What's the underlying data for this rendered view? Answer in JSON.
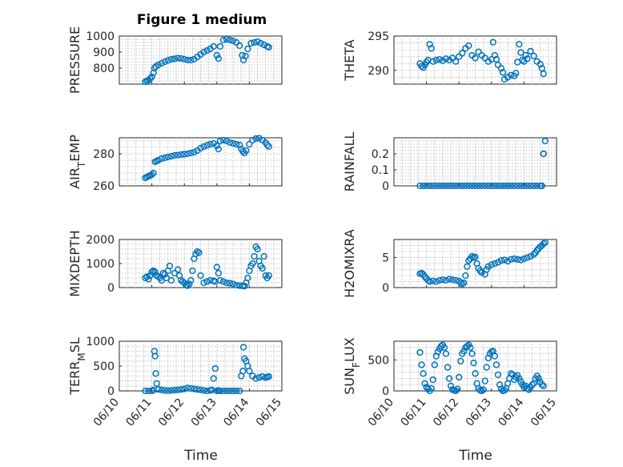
{
  "figure_title": "Figure 1 medium",
  "xlabel": "Time",
  "colors": {
    "marker": "#0072BD",
    "axis": "#262626",
    "grid": "#b0b0b0"
  },
  "x_ticks": [
    "06/10",
    "06/11",
    "06/12",
    "06/13",
    "06/14",
    "06/15"
  ],
  "chart_data": [
    {
      "type": "scatter",
      "title": "Figure 1 medium",
      "ylabel": "PRESSURE",
      "ylim": [
        700,
        1000
      ],
      "yticks": [
        800,
        900,
        1000
      ],
      "grid": true,
      "x": [
        10.8,
        10.85,
        10.9,
        10.95,
        11.0,
        11.05,
        11.08,
        11.12,
        11.2,
        11.3,
        11.4,
        11.5,
        11.6,
        11.7,
        11.8,
        11.9,
        12.0,
        12.1,
        12.2,
        12.3,
        12.4,
        12.5,
        12.6,
        12.7,
        12.8,
        12.9,
        13.0,
        13.05,
        13.1,
        13.2,
        13.3,
        13.4,
        13.5,
        13.6,
        13.7,
        13.78,
        13.82,
        13.88,
        13.95,
        14.05,
        14.15,
        14.25,
        14.35,
        14.45,
        14.55,
        14.6
      ],
      "values": [
        715,
        720,
        725,
        735,
        745,
        770,
        800,
        810,
        820,
        830,
        840,
        848,
        855,
        858,
        862,
        860,
        855,
        850,
        850,
        855,
        870,
        885,
        900,
        910,
        920,
        935,
        880,
        860,
        935,
        975,
        980,
        975,
        970,
        960,
        940,
        880,
        850,
        875,
        920,
        955,
        960,
        965,
        955,
        945,
        935,
        930
      ]
    },
    {
      "type": "scatter",
      "ylabel": "THETA",
      "ylim": [
        288,
        295
      ],
      "yticks": [
        290,
        295
      ],
      "grid": true,
      "x": [
        10.8,
        10.85,
        10.9,
        10.95,
        11.0,
        11.05,
        11.1,
        11.15,
        11.2,
        11.3,
        11.4,
        11.5,
        11.6,
        11.7,
        11.8,
        11.9,
        12.0,
        12.1,
        12.2,
        12.3,
        12.4,
        12.5,
        12.6,
        12.7,
        12.8,
        12.9,
        13.0,
        13.05,
        13.1,
        13.15,
        13.2,
        13.3,
        13.35,
        13.4,
        13.5,
        13.6,
        13.7,
        13.75,
        13.8,
        13.85,
        13.9,
        13.95,
        14.0,
        14.05,
        14.1,
        14.2,
        14.3,
        14.4,
        14.5,
        14.55,
        14.6
      ],
      "values": [
        291,
        290.6,
        290.4,
        290.8,
        291.2,
        291.5,
        293.8,
        293.2,
        291.3,
        291.5,
        291.6,
        291.4,
        291.7,
        291.5,
        291.8,
        291.3,
        292.0,
        292.5,
        293.2,
        293.6,
        292.2,
        291.8,
        292.7,
        292.2,
        291.8,
        291.3,
        291.6,
        294.1,
        292.2,
        291.6,
        290.8,
        290.3,
        289.7,
        288.7,
        289.0,
        289.3,
        289.2,
        289.6,
        291.2,
        293.8,
        292.6,
        291.5,
        291.3,
        292.2,
        291.7,
        292.8,
        292.1,
        291.3,
        290.9,
        290.3,
        289.5
      ]
    },
    {
      "type": "scatter",
      "ylabel": "AIR_TEMP",
      "ylim": [
        260,
        290
      ],
      "yticks": [
        260,
        280
      ],
      "grid": true,
      "x": [
        10.8,
        10.85,
        10.9,
        10.95,
        11.0,
        11.05,
        11.1,
        11.15,
        11.2,
        11.3,
        11.4,
        11.5,
        11.6,
        11.7,
        11.8,
        11.9,
        12.0,
        12.1,
        12.2,
        12.3,
        12.4,
        12.5,
        12.6,
        12.7,
        12.8,
        12.9,
        13.0,
        13.05,
        13.1,
        13.2,
        13.3,
        13.4,
        13.5,
        13.6,
        13.7,
        13.75,
        13.8,
        13.85,
        13.9,
        14.0,
        14.1,
        14.2,
        14.3,
        14.4,
        14.5,
        14.55,
        14.6
      ],
      "values": [
        265,
        265.5,
        266,
        266.5,
        267,
        268,
        275,
        275.5,
        276,
        277,
        277.5,
        278,
        278.5,
        279,
        279.2,
        279.5,
        279.8,
        280,
        280.5,
        281,
        282,
        283.5,
        284.5,
        285.3,
        286,
        286.5,
        285,
        283,
        288,
        288.5,
        288,
        287,
        286.5,
        286,
        285.5,
        283,
        281.5,
        280.5,
        282,
        286,
        288.5,
        289.5,
        289.7,
        288.5,
        287,
        285.5,
        284.5
      ]
    },
    {
      "type": "scatter",
      "ylabel": "RAINFALL",
      "ylim": [
        0,
        0.3
      ],
      "yticks": [
        0,
        0.1,
        0.2
      ],
      "grid": true,
      "x": [
        10.8,
        10.9,
        11.0,
        11.1,
        11.2,
        11.3,
        11.4,
        11.5,
        11.6,
        11.7,
        11.8,
        11.9,
        12.0,
        12.1,
        12.2,
        12.3,
        12.4,
        12.5,
        12.6,
        12.7,
        12.8,
        12.9,
        13.0,
        13.1,
        13.2,
        13.3,
        13.4,
        13.5,
        13.6,
        13.7,
        13.8,
        13.9,
        14.0,
        14.1,
        14.2,
        14.3,
        14.4,
        14.5,
        14.55,
        14.6,
        14.6,
        14.65
      ],
      "values": [
        0,
        0,
        0,
        0,
        0,
        0,
        0,
        0,
        0,
        0,
        0,
        0,
        0,
        0,
        0,
        0,
        0,
        0,
        0,
        0,
        0,
        0,
        0,
        0,
        0,
        0,
        0,
        0,
        0,
        0,
        0,
        0,
        0,
        0,
        0,
        0,
        0,
        0,
        0,
        0.2,
        0.2,
        0.28
      ]
    },
    {
      "type": "scatter",
      "ylabel": "MIXDEPTH",
      "ylim": [
        0,
        2000
      ],
      "yticks": [
        0,
        1000,
        2000
      ],
      "grid": true,
      "x": [
        10.8,
        10.85,
        10.9,
        10.95,
        11.0,
        11.05,
        11.1,
        11.15,
        11.2,
        11.25,
        11.3,
        11.35,
        11.4,
        11.45,
        11.5,
        11.55,
        11.6,
        11.7,
        11.8,
        11.85,
        11.9,
        11.95,
        12.0,
        12.05,
        12.1,
        12.15,
        12.2,
        12.25,
        12.3,
        12.35,
        12.4,
        12.45,
        12.5,
        12.6,
        12.7,
        12.8,
        12.9,
        12.95,
        13.0,
        13.05,
        13.1,
        13.2,
        13.3,
        13.4,
        13.5,
        13.6,
        13.7,
        13.8,
        13.85,
        13.9,
        13.95,
        14.0,
        14.05,
        14.1,
        14.15,
        14.2,
        14.25,
        14.3,
        14.35,
        14.4,
        14.45,
        14.5,
        14.55,
        14.6
      ],
      "values": [
        400,
        450,
        350,
        500,
        650,
        700,
        650,
        500,
        450,
        400,
        300,
        600,
        550,
        400,
        700,
        900,
        300,
        600,
        750,
        500,
        300,
        250,
        200,
        100,
        80,
        150,
        300,
        700,
        1200,
        1400,
        1500,
        1450,
        500,
        200,
        250,
        300,
        280,
        250,
        850,
        600,
        300,
        250,
        200,
        180,
        150,
        100,
        80,
        70,
        60,
        200,
        400,
        700,
        900,
        1000,
        1300,
        1700,
        1600,
        1100,
        900,
        800,
        1300,
        500,
        400,
        500
      ]
    },
    {
      "type": "scatter",
      "ylabel": "H2OMIXRA",
      "ylim": [
        0,
        8
      ],
      "yticks": [
        0,
        5
      ],
      "grid": true,
      "x": [
        10.8,
        10.85,
        10.9,
        10.95,
        11.0,
        11.05,
        11.1,
        11.2,
        11.3,
        11.4,
        11.5,
        11.6,
        11.7,
        11.8,
        11.9,
        12.0,
        12.05,
        12.1,
        12.15,
        12.2,
        12.25,
        12.3,
        12.35,
        12.4,
        12.45,
        12.5,
        12.55,
        12.6,
        12.65,
        12.7,
        12.8,
        12.85,
        12.9,
        13.0,
        13.1,
        13.2,
        13.3,
        13.4,
        13.5,
        13.6,
        13.7,
        13.8,
        13.9,
        14.0,
        14.1,
        14.2,
        14.3,
        14.35,
        14.4,
        14.45,
        14.5,
        14.55,
        14.6,
        14.65
      ],
      "values": [
        2.3,
        2.4,
        2.2,
        1.8,
        1.5,
        1.2,
        1.0,
        1.1,
        1.0,
        1.2,
        1.3,
        1.2,
        1.4,
        1.3,
        1.2,
        1.1,
        0.8,
        0.6,
        0.8,
        2.0,
        3.5,
        4.5,
        4.8,
        5.2,
        5.0,
        5.1,
        4.0,
        3.2,
        2.8,
        2.5,
        2.2,
        3.0,
        3.5,
        3.8,
        4.0,
        4.2,
        4.5,
        4.6,
        4.4,
        4.7,
        4.8,
        4.7,
        4.6,
        4.8,
        5.0,
        5.2,
        5.5,
        5.8,
        6.2,
        6.5,
        6.8,
        7.0,
        7.3,
        7.5
      ]
    },
    {
      "type": "scatter",
      "ylabel": "TERR_MSL",
      "ylim": [
        0,
        1000
      ],
      "yticks": [
        0,
        500,
        1000
      ],
      "grid": true,
      "x": [
        10.8,
        10.9,
        11.0,
        11.05,
        11.08,
        11.1,
        11.12,
        11.15,
        11.2,
        11.3,
        11.4,
        11.5,
        11.6,
        11.7,
        11.8,
        11.9,
        12.0,
        12.1,
        12.2,
        12.3,
        12.4,
        12.5,
        12.6,
        12.7,
        12.8,
        12.85,
        12.9,
        12.95,
        13.0,
        13.05,
        13.1,
        13.2,
        13.3,
        13.4,
        13.5,
        13.6,
        13.7,
        13.75,
        13.8,
        13.82,
        13.85,
        13.9,
        13.95,
        14.0,
        14.1,
        14.2,
        14.3,
        14.4,
        14.5,
        14.55,
        14.6
      ],
      "values": [
        0,
        0,
        0,
        20,
        800,
        700,
        350,
        150,
        30,
        20,
        10,
        5,
        10,
        15,
        20,
        30,
        40,
        60,
        50,
        40,
        30,
        20,
        10,
        0,
        10,
        20,
        250,
        450,
        0,
        10,
        0,
        0,
        0,
        0,
        0,
        0,
        0,
        300,
        400,
        880,
        650,
        600,
        500,
        400,
        300,
        250,
        270,
        290,
        270,
        280,
        290
      ]
    },
    {
      "type": "scatter",
      "ylabel": "SUN_FLUX",
      "ylim": [
        0,
        800
      ],
      "yticks": [
        0,
        500
      ],
      "grid": true,
      "x": [
        10.8,
        10.85,
        10.9,
        10.95,
        11.0,
        11.05,
        11.1,
        11.15,
        11.2,
        11.25,
        11.3,
        11.35,
        11.4,
        11.45,
        11.5,
        11.55,
        11.6,
        11.65,
        11.7,
        11.75,
        11.8,
        11.85,
        11.9,
        11.95,
        12.0,
        12.05,
        12.1,
        12.15,
        12.2,
        12.25,
        12.3,
        12.35,
        12.4,
        12.45,
        12.5,
        12.55,
        12.6,
        12.65,
        12.7,
        12.75,
        12.8,
        12.85,
        12.9,
        12.95,
        13.0,
        13.05,
        13.1,
        13.15,
        13.2,
        13.25,
        13.3,
        13.35,
        13.4,
        13.45,
        13.5,
        13.55,
        13.6,
        13.65,
        13.7,
        13.75,
        13.8,
        13.85,
        13.9,
        13.95,
        14.0,
        14.05,
        14.1,
        14.15,
        14.2,
        14.25,
        14.3,
        14.35,
        14.4,
        14.45,
        14.5,
        14.55,
        14.6
      ],
      "values": [
        620,
        420,
        280,
        120,
        60,
        30,
        0,
        40,
        180,
        420,
        560,
        630,
        680,
        720,
        740,
        700,
        600,
        380,
        200,
        80,
        20,
        10,
        0,
        30,
        220,
        480,
        600,
        640,
        700,
        720,
        740,
        700,
        600,
        450,
        280,
        120,
        40,
        10,
        0,
        20,
        160,
        380,
        530,
        600,
        630,
        640,
        560,
        420,
        260,
        100,
        30,
        0,
        10,
        40,
        120,
        200,
        280,
        260,
        180,
        220,
        250,
        200,
        150,
        100,
        60,
        80,
        40,
        20,
        60,
        100,
        120,
        200,
        240,
        200,
        140,
        100,
        80
      ]
    }
  ]
}
